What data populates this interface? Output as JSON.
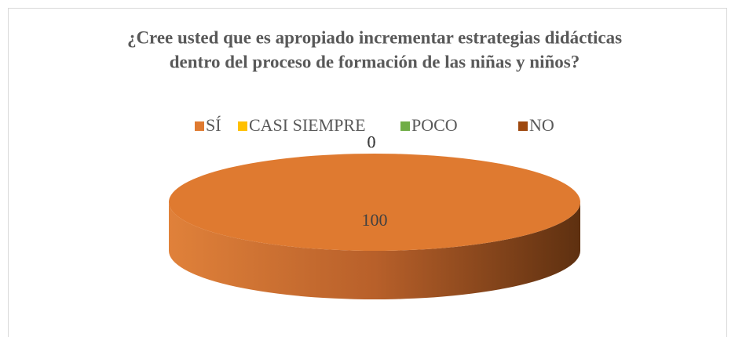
{
  "chart_data": {
    "type": "pie3d",
    "title": [
      "¿Cree usted que es apropiado incrementar estrategias didácticas",
      "dentro del proceso de formación de las niñas y niños?"
    ],
    "categories": [
      "SÍ",
      "CASI SIEMPRE",
      "POCO",
      "NO"
    ],
    "values": [
      100,
      0,
      0,
      0
    ],
    "colors": [
      "#DF7A30",
      "#FFC000",
      "#70AD47",
      "#9E480E"
    ],
    "legend": "top"
  }
}
